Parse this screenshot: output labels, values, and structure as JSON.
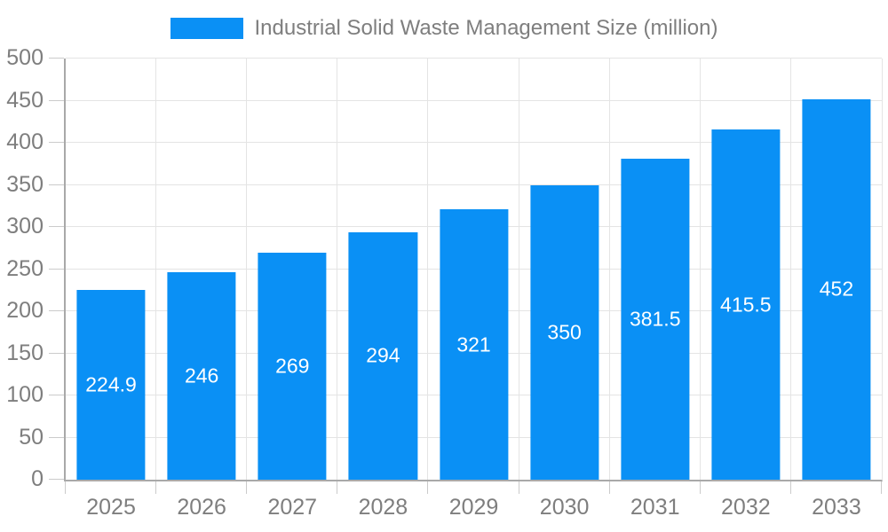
{
  "chart_data": {
    "type": "bar",
    "title": "Industrial Solid Waste Management Size (million)",
    "categories": [
      "2025",
      "2026",
      "2027",
      "2028",
      "2029",
      "2030",
      "2031",
      "2032",
      "2033"
    ],
    "values": [
      224.9,
      246,
      269,
      294,
      321,
      350,
      381.5,
      415.5,
      452
    ],
    "series": [
      {
        "name": "Industrial Solid Waste Management Size (million)",
        "values": [
          224.9,
          246,
          269,
          294,
          321,
          350,
          381.5,
          415.5,
          452
        ]
      }
    ],
    "xlabel": "",
    "ylabel": "",
    "ylim": [
      0,
      500
    ],
    "y_ticks": [
      0,
      50,
      100,
      150,
      200,
      250,
      300,
      350,
      400,
      450,
      500
    ],
    "grid": true,
    "legend_position": "top-center",
    "bar_labels_inside": true,
    "colors": {
      "bar": "#0a90f5",
      "axis": "#a9a9a9",
      "grid": "#e4e4e4",
      "tick": "#cbcbcb",
      "text": "#7e7e7e",
      "value_text": "#ffffff"
    }
  }
}
